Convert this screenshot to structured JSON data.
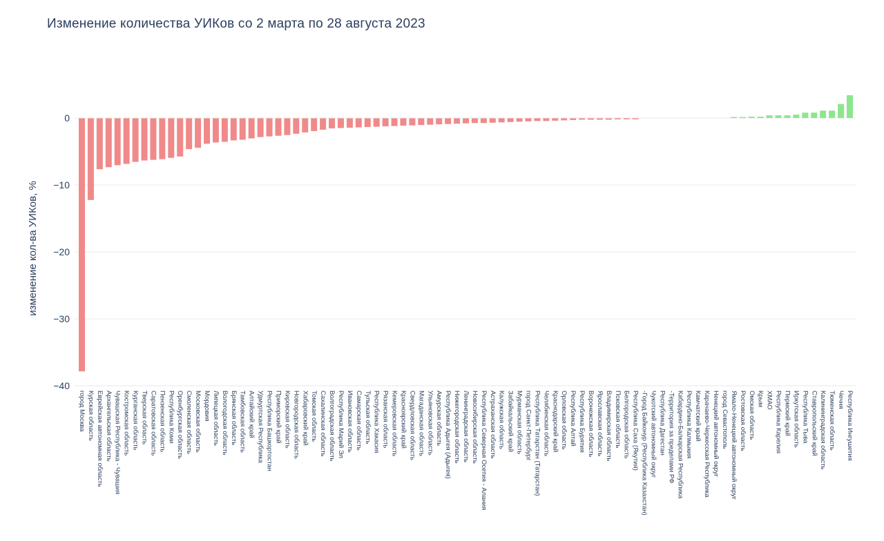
{
  "title": "Изменение количества УИКов со 2 марта по 28 августа 2023",
  "chart_data": {
    "type": "bar",
    "title": "Изменение количества УИКов со 2 марта по 28 августа 2023",
    "xlabel": "",
    "ylabel": "изменение кол-ва УИКов, %",
    "ylim": [
      -40.5,
      6
    ],
    "yticks": [
      0,
      -10,
      -20,
      -30,
      -40
    ],
    "ytick_labels": [
      "0",
      "−10",
      "−20",
      "−30",
      "−40"
    ],
    "grid": true,
    "legend_position": "none",
    "x_tick_rotation": 90,
    "colors": {
      "negative_bar": "#F08A8A",
      "positive_bar": "#8DE68D",
      "text": "#2a3f5f",
      "gridline": "#e8e8e8",
      "background": "#ffffff"
    },
    "categories": [
      "город Москва",
      "Курская область",
      "Еврейская автономная область",
      "Архангельская область",
      "Чувашская Республика - Чувашия",
      "Костромская область",
      "Курганская область",
      "Тверская область",
      "Саратовская область",
      "Пензенская область",
      "Республика Коми",
      "Оренбургская область",
      "Смоленская область",
      "Московская область",
      "Мордовия",
      "Липецкая область",
      "Вологодская область",
      "Брянская область",
      "Тамбовская область",
      "Алтайский край",
      "Удмуртская Республика",
      "Республика Башкортостан",
      "Приморский край",
      "Кировская область",
      "Новгородская область",
      "Хабаровский край",
      "Томская область",
      "Сахалинская область",
      "Волгоградская область",
      "Республика Марий Эл",
      "Ивановская область",
      "Самарская область",
      "Тульская область",
      "Республика Хакасия",
      "Рязанская область",
      "Кемеровская область",
      "Красноярский край",
      "Свердловская область",
      "Магаданская область",
      "Ульяновская область",
      "Амурская область",
      "Республика Адыгея (Адыгея)",
      "Нижегородская область",
      "Ленинградская область",
      "Новосибирская область",
      "Республика Северная Осетия - Алания",
      "Астраханская область",
      "Калужская область",
      "Забайкальский край",
      "Мурманская область",
      "город Санкт-Петербург",
      "Республика Татарстан (Татарстан)",
      "Челябинская область",
      "Краснодарский край",
      "Орловская область",
      "Республика Алтай",
      "Республика Бурятия",
      "Воронежская область",
      "Ярославская область",
      "Владимирская область",
      "Псковская область",
      "Белгородская область",
      "Республика Саха (Якутия)",
      "-Город Байконур (Республика Казахстан)",
      "Чукотский автономный округ",
      "Республика Дагестан",
      "-Территория за пределами РФ",
      "Кабардино-Балкарская Республика",
      "Республика Калмыкия",
      "Камчатский край",
      "Карачаево-Черкесская Республика",
      "Ненецкий автономный округ",
      "город Севастополь",
      "Ямало-Ненецкий автономный округ",
      "Ростовская область",
      "Омская область",
      "Крым",
      "ХМАО",
      "Республика Карелия",
      "Пермский край",
      "Иркутская область",
      "Республика Тыва",
      "Ставропольский край",
      "Калининградская область",
      "Тюменская область",
      "Чечня",
      "Республика Ингушетия"
    ],
    "values": [
      -37.8,
      -12.2,
      -7.6,
      -7.3,
      -7.0,
      -6.8,
      -6.5,
      -6.3,
      -6.2,
      -6.1,
      -5.9,
      -5.7,
      -4.6,
      -4.4,
      -3.8,
      -3.6,
      -3.5,
      -3.3,
      -3.2,
      -3.0,
      -2.8,
      -2.7,
      -2.6,
      -2.5,
      -2.3,
      -2.1,
      -1.9,
      -1.7,
      -1.5,
      -1.45,
      -1.4,
      -1.35,
      -1.3,
      -1.25,
      -1.2,
      -1.15,
      -1.1,
      -1.05,
      -1.0,
      -0.95,
      -0.9,
      -0.85,
      -0.8,
      -0.75,
      -0.7,
      -0.7,
      -0.65,
      -0.6,
      -0.55,
      -0.5,
      -0.45,
      -0.4,
      -0.4,
      -0.35,
      -0.3,
      -0.25,
      -0.2,
      -0.2,
      -0.2,
      -0.2,
      -0.15,
      -0.15,
      -0.15,
      0,
      0,
      0,
      0,
      0,
      0,
      0,
      0,
      0,
      0,
      0.15,
      0.15,
      0.2,
      0.2,
      0.4,
      0.4,
      0.4,
      0.5,
      0.8,
      0.8,
      1.1,
      1.1,
      2.1,
      3.4
    ]
  }
}
